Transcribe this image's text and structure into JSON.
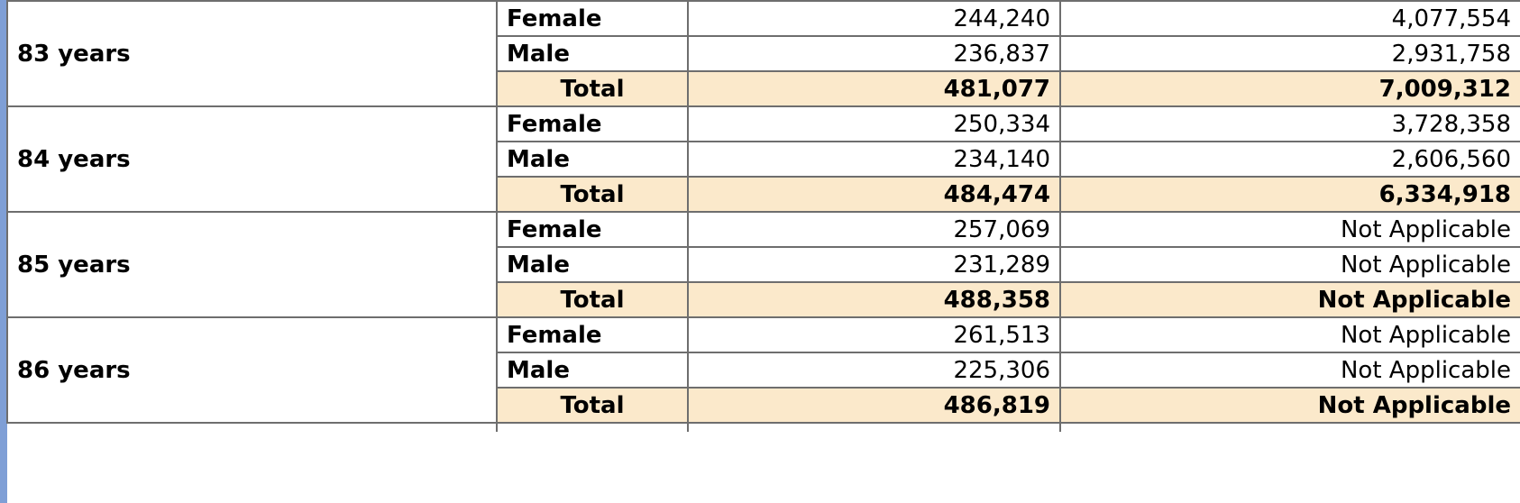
{
  "colors": {
    "total_row_bg": "#fbe9cb",
    "border": "#6e6e6e",
    "left_accent": "#7f9fd6"
  },
  "groups": [
    {
      "age": "83 years",
      "rows": [
        {
          "sex": "Female",
          "value1": "244,240",
          "value2": "4,077,554"
        },
        {
          "sex": "Male",
          "value1": "236,837",
          "value2": "2,931,758"
        }
      ],
      "total": {
        "label": "Total",
        "value1": "481,077",
        "value2": "7,009,312"
      }
    },
    {
      "age": "84 years",
      "rows": [
        {
          "sex": "Female",
          "value1": "250,334",
          "value2": "3,728,358"
        },
        {
          "sex": "Male",
          "value1": "234,140",
          "value2": "2,606,560"
        }
      ],
      "total": {
        "label": "Total",
        "value1": "484,474",
        "value2": "6,334,918"
      }
    },
    {
      "age": "85 years",
      "rows": [
        {
          "sex": "Female",
          "value1": "257,069",
          "value2": "Not Applicable"
        },
        {
          "sex": "Male",
          "value1": "231,289",
          "value2": "Not Applicable"
        }
      ],
      "total": {
        "label": "Total",
        "value1": "488,358",
        "value2": "Not Applicable"
      }
    },
    {
      "age": "86 years",
      "rows": [
        {
          "sex": "Female",
          "value1": "261,513",
          "value2": "Not Applicable"
        },
        {
          "sex": "Male",
          "value1": "225,306",
          "value2": "Not Applicable"
        }
      ],
      "total": {
        "label": "Total",
        "value1": "486,819",
        "value2": "Not Applicable"
      }
    }
  ]
}
